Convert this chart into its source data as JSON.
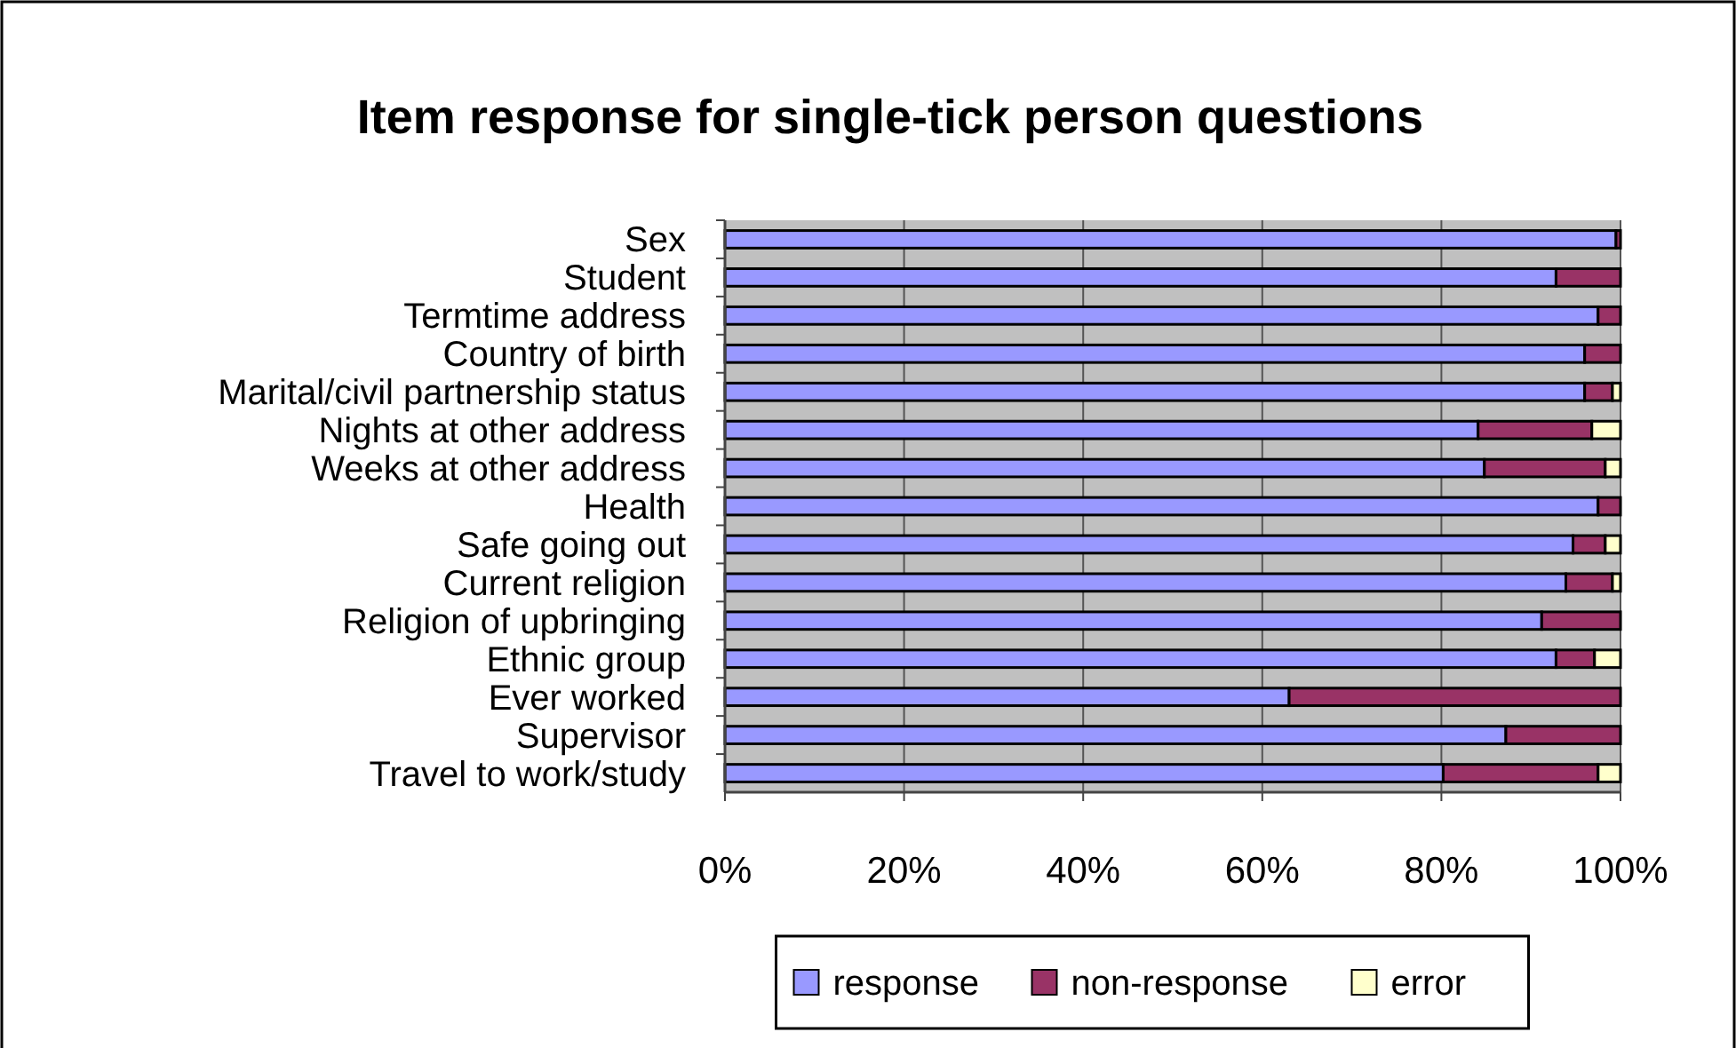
{
  "chart_data": {
    "type": "bar",
    "orientation": "horizontal",
    "stacked": true,
    "title": "Item response for single-tick person questions",
    "categories": [
      "Sex",
      "Student",
      "Termtime address",
      "Country of birth",
      "Marital/civil partnership status",
      "Nights at other address",
      "Weeks at other address",
      "Health",
      "Safe going out",
      "Current religion",
      "Religion of upbringing",
      "Ethnic group",
      "Ever worked",
      "Supervisor",
      "Travel to work/study"
    ],
    "series": [
      {
        "name": "response",
        "color": "#9999ff",
        "values": [
          99.5,
          92.8,
          97.5,
          96.0,
          96.0,
          84.1,
          84.8,
          97.5,
          94.7,
          93.9,
          91.2,
          92.8,
          63.0,
          87.2,
          80.2
        ]
      },
      {
        "name": "non-response",
        "color": "#993366",
        "values": [
          0.5,
          7.2,
          2.5,
          4.0,
          3.1,
          12.7,
          13.5,
          2.5,
          3.6,
          5.2,
          8.8,
          4.3,
          37.0,
          12.8,
          17.3
        ]
      },
      {
        "name": "error",
        "color": "#ffffcc",
        "values": [
          0,
          0,
          0,
          0,
          0.9,
          3.2,
          1.7,
          0,
          1.7,
          0.9,
          0,
          2.9,
          0,
          0,
          2.5
        ]
      }
    ],
    "xlim": [
      0,
      100
    ],
    "xticks": [
      {
        "value": 0,
        "label": "0%"
      },
      {
        "value": 20,
        "label": "20%"
      },
      {
        "value": 40,
        "label": "40%"
      },
      {
        "value": 60,
        "label": "60%"
      },
      {
        "value": 80,
        "label": "80%"
      },
      {
        "value": 100,
        "label": "100%"
      }
    ],
    "grid": "x",
    "legend": "bottom"
  }
}
